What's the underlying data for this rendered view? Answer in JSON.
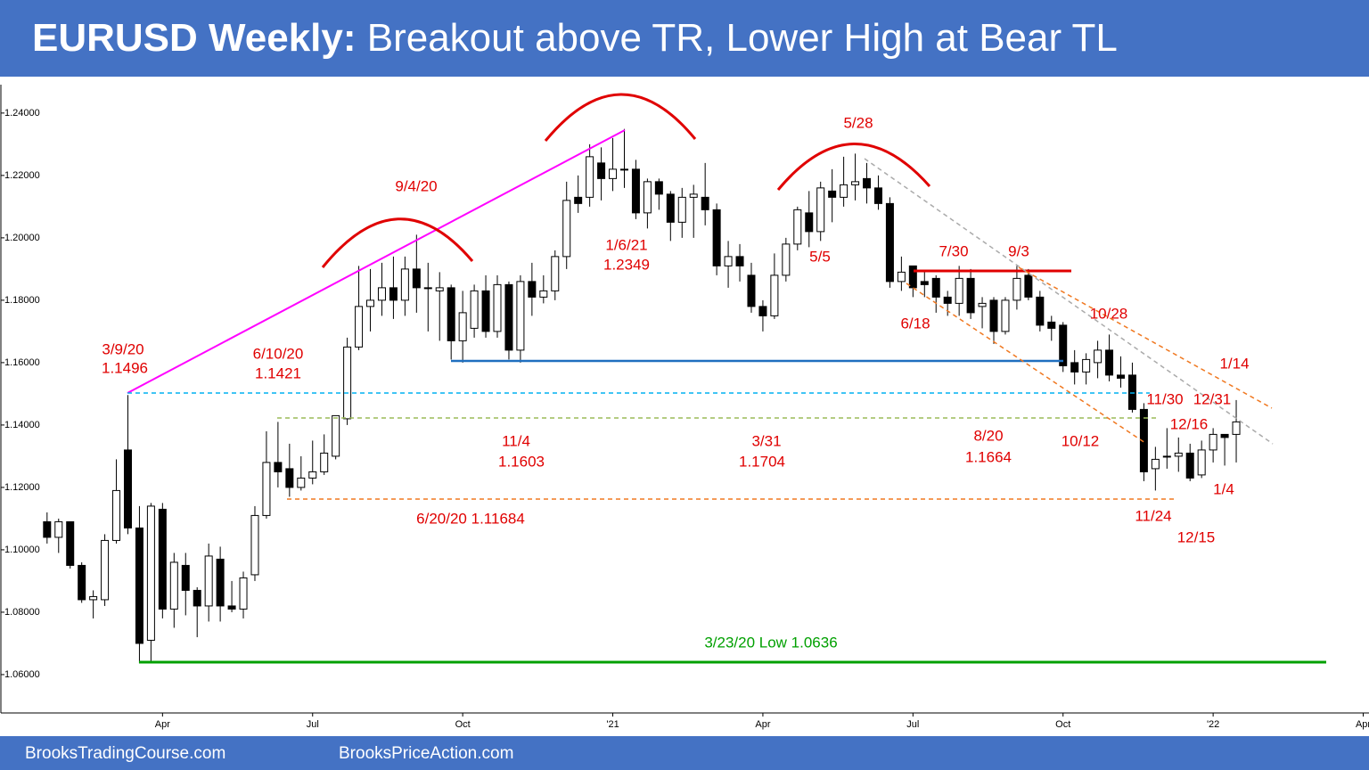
{
  "header": {
    "title_bold": "EURUSD Weekly:",
    "title": " Breakout above TR, Lower High at Bear TL"
  },
  "footer": {
    "left": "BrooksTradingCourse.com",
    "right": "BrooksPriceAction.com"
  },
  "chart_data": {
    "type": "candlestick",
    "x": [
      0,
      1,
      2,
      3,
      4,
      5,
      6,
      7,
      8,
      9,
      10,
      11,
      12,
      13,
      14,
      15,
      16,
      17,
      18,
      19,
      20,
      21,
      22,
      23,
      24,
      25,
      26,
      27,
      28,
      29,
      30,
      31,
      32,
      33,
      34,
      35,
      36,
      37,
      38,
      39,
      40,
      41,
      42,
      43,
      44,
      45,
      46,
      47,
      48,
      49,
      50,
      51,
      52,
      53,
      54,
      55,
      56,
      57,
      58,
      59,
      60,
      61,
      62,
      63,
      64,
      65,
      66,
      67,
      68,
      69,
      70,
      71,
      72,
      73,
      74,
      75,
      76,
      77,
      78,
      79,
      80,
      81,
      82,
      83,
      84,
      85,
      86,
      87,
      88,
      89,
      90,
      91,
      92,
      93,
      94,
      95,
      96,
      97,
      98,
      99,
      100,
      101,
      102,
      103
    ],
    "open": [
      1.109,
      1.104,
      1.109,
      1.095,
      1.084,
      1.084,
      1.103,
      1.132,
      1.107,
      1.071,
      1.113,
      1.081,
      1.095,
      1.087,
      1.082,
      1.097,
      1.082,
      1.081,
      1.092,
      1.111,
      1.128,
      1.126,
      1.12,
      1.123,
      1.125,
      1.13,
      1.142,
      1.165,
      1.178,
      1.18,
      1.184,
      1.18,
      1.19,
      1.184,
      1.183,
      1.184,
      1.167,
      1.171,
      1.183,
      1.17,
      1.185,
      1.164,
      1.186,
      1.181,
      1.183,
      1.194,
      1.213,
      1.213,
      1.224,
      1.219,
      1.222,
      1.222,
      1.208,
      1.218,
      1.214,
      1.205,
      1.213,
      1.213,
      1.209,
      1.191,
      1.194,
      1.188,
      1.178,
      1.175,
      1.188,
      1.198,
      1.208,
      1.202,
      1.215,
      1.213,
      1.217,
      1.219,
      1.216,
      1.211,
      1.186,
      1.191,
      1.186,
      1.187,
      1.181,
      1.179,
      1.187,
      1.178,
      1.18,
      1.17,
      1.18,
      1.188,
      1.181,
      1.173,
      1.172,
      1.16,
      1.157,
      1.16,
      1.164,
      1.156,
      1.156,
      1.145,
      1.126,
      1.13,
      1.13,
      1.131,
      1.124,
      1.132,
      1.137,
      1.137
    ],
    "high": [
      1.112,
      1.11,
      1.109,
      1.096,
      1.087,
      1.105,
      1.129,
      1.1496,
      1.114,
      1.115,
      1.115,
      1.099,
      1.099,
      1.088,
      1.102,
      1.101,
      1.09,
      1.093,
      1.114,
      1.138,
      1.141,
      1.134,
      1.13,
      1.135,
      1.137,
      1.143,
      1.168,
      1.191,
      1.19,
      1.192,
      1.194,
      1.194,
      1.201,
      1.192,
      1.189,
      1.185,
      1.183,
      1.185,
      1.188,
      1.188,
      1.186,
      1.188,
      1.192,
      1.188,
      1.196,
      1.218,
      1.22,
      1.23,
      1.229,
      1.232,
      1.2349,
      1.225,
      1.219,
      1.219,
      1.215,
      1.216,
      1.217,
      1.224,
      1.211,
      1.199,
      1.198,
      1.192,
      1.18,
      1.195,
      1.2,
      1.21,
      1.215,
      1.218,
      1.222,
      1.226,
      1.227,
      1.224,
      1.22,
      1.213,
      1.194,
      1.191,
      1.189,
      1.188,
      1.183,
      1.191,
      1.19,
      1.181,
      1.181,
      1.181,
      1.191,
      1.19,
      1.183,
      1.175,
      1.173,
      1.164,
      1.163,
      1.167,
      1.169,
      1.162,
      1.16,
      1.147,
      1.133,
      1.139,
      1.136,
      1.134,
      1.135,
      1.139,
      1.137,
      1.148
    ],
    "low": [
      1.102,
      1.099,
      1.094,
      1.083,
      1.078,
      1.082,
      1.102,
      1.105,
      1.0636,
      1.0636,
      1.078,
      1.075,
      1.079,
      1.072,
      1.077,
      1.077,
      1.08,
      1.078,
      1.09,
      1.11,
      1.12,
      1.117,
      1.119,
      1.121,
      1.124,
      1.129,
      1.14,
      1.164,
      1.17,
      1.175,
      1.174,
      1.175,
      1.176,
      1.17,
      1.167,
      1.161,
      1.16,
      1.168,
      1.168,
      1.168,
      1.161,
      1.16,
      1.175,
      1.179,
      1.18,
      1.19,
      1.208,
      1.21,
      1.212,
      1.215,
      1.216,
      1.206,
      1.203,
      1.209,
      1.199,
      1.2,
      1.2,
      1.204,
      1.188,
      1.184,
      1.186,
      1.176,
      1.17,
      1.174,
      1.186,
      1.196,
      1.197,
      1.199,
      1.205,
      1.21,
      1.212,
      1.211,
      1.209,
      1.184,
      1.183,
      1.181,
      1.181,
      1.176,
      1.175,
      1.175,
      1.174,
      1.171,
      1.166,
      1.169,
      1.177,
      1.18,
      1.17,
      1.167,
      1.157,
      1.153,
      1.153,
      1.155,
      1.154,
      1.152,
      1.144,
      1.122,
      1.119,
      1.126,
      1.125,
      1.122,
      1.123,
      1.128,
      1.127,
      1.128
    ],
    "close": [
      1.104,
      1.109,
      1.095,
      1.084,
      1.085,
      1.103,
      1.119,
      1.107,
      1.07,
      1.114,
      1.081,
      1.096,
      1.087,
      1.082,
      1.098,
      1.082,
      1.081,
      1.091,
      1.111,
      1.128,
      1.125,
      1.12,
      1.123,
      1.125,
      1.131,
      1.143,
      1.165,
      1.178,
      1.18,
      1.184,
      1.18,
      1.19,
      1.184,
      1.184,
      1.184,
      1.167,
      1.176,
      1.183,
      1.17,
      1.185,
      1.164,
      1.186,
      1.181,
      1.183,
      1.194,
      1.212,
      1.211,
      1.226,
      1.219,
      1.222,
      1.222,
      1.208,
      1.218,
      1.214,
      1.205,
      1.213,
      1.214,
      1.209,
      1.191,
      1.194,
      1.191,
      1.178,
      1.175,
      1.188,
      1.198,
      1.209,
      1.202,
      1.216,
      1.213,
      1.217,
      1.218,
      1.216,
      1.211,
      1.186,
      1.189,
      1.184,
      1.185,
      1.181,
      1.179,
      1.187,
      1.176,
      1.179,
      1.17,
      1.18,
      1.187,
      1.181,
      1.172,
      1.171,
      1.159,
      1.157,
      1.161,
      1.164,
      1.156,
      1.155,
      1.145,
      1.125,
      1.129,
      1.13,
      1.131,
      1.123,
      1.132,
      1.137,
      1.136,
      1.141
    ],
    "up_color": "#ffffff",
    "down_color": "#000000",
    "xlim": [
      -4,
      114.5
    ],
    "xticks": [
      {
        "value": 10,
        "label": "Apr"
      },
      {
        "value": 23,
        "label": "Jul"
      },
      {
        "value": 36,
        "label": "Oct"
      },
      {
        "value": 49,
        "label": "'21"
      },
      {
        "value": 62,
        "label": "Apr"
      },
      {
        "value": 75,
        "label": "Jul"
      },
      {
        "value": 88,
        "label": "Oct"
      },
      {
        "value": 101,
        "label": "'22"
      },
      {
        "value": 114,
        "label": "Apr"
      }
    ],
    "ylim": [
      1.0477,
      1.2491
    ],
    "yticks": [
      {
        "value": 1.06,
        "label": "1.06000"
      },
      {
        "value": 1.08,
        "label": "1.08000"
      },
      {
        "value": 1.1,
        "label": "1.10000"
      },
      {
        "value": 1.12,
        "label": "1.12000"
      },
      {
        "value": 1.14,
        "label": "1.14000"
      },
      {
        "value": 1.16,
        "label": "1.16000"
      },
      {
        "value": 1.18,
        "label": "1.18000"
      },
      {
        "value": 1.2,
        "label": "1.20000"
      },
      {
        "value": 1.22,
        "label": "1.22000"
      },
      {
        "value": 1.24,
        "label": "1.24000"
      }
    ],
    "grid": false,
    "annotations": [
      "9/4/20",
      "1/6/21",
      "1.2349",
      "5/28",
      "5/5",
      "7/30",
      "9/3",
      "6/18",
      "10/28",
      "1/14",
      "3/9/20",
      "1.1496",
      "6/10/20",
      "1.1421",
      "11/30",
      "12/31",
      "12/16",
      "10/12",
      "11/4",
      "1.1603",
      "3/31",
      "1.1704",
      "8/20",
      "1.1664",
      "1/4",
      "6/20/20 1.11684",
      "11/24",
      "12/15",
      "3/23/20 Low 1.0636"
    ]
  }
}
